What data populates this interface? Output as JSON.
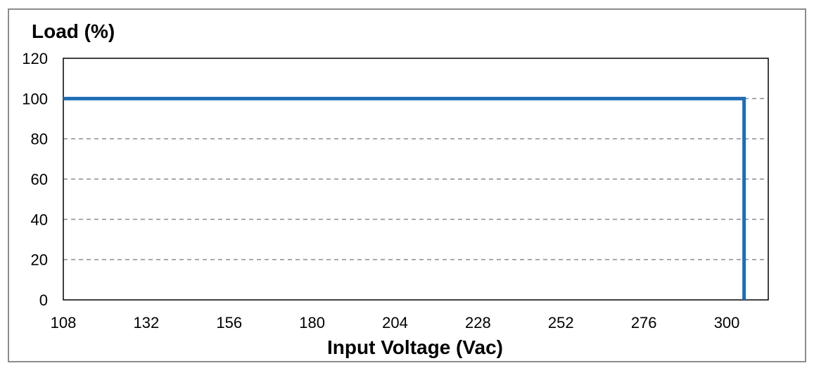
{
  "chart_data": {
    "type": "line",
    "title": "",
    "xlabel": "Input Voltage (Vac)",
    "ylabel": "Load (%)",
    "xlim": [
      108,
      312
    ],
    "ylim": [
      0,
      120
    ],
    "x_ticks": [
      108,
      132,
      156,
      180,
      204,
      228,
      252,
      276,
      300
    ],
    "y_ticks": [
      0,
      20,
      40,
      60,
      80,
      100,
      120
    ],
    "grid": "horizontal dashed",
    "legend": "none",
    "series": [
      {
        "x": [
          108,
          305,
          305
        ],
        "y": [
          100,
          100,
          0
        ]
      }
    ]
  },
  "colors": {
    "line": "#1f6db5",
    "grid": "#8c8c8c",
    "axes": "#000000",
    "frame": "#8c8c8c"
  }
}
